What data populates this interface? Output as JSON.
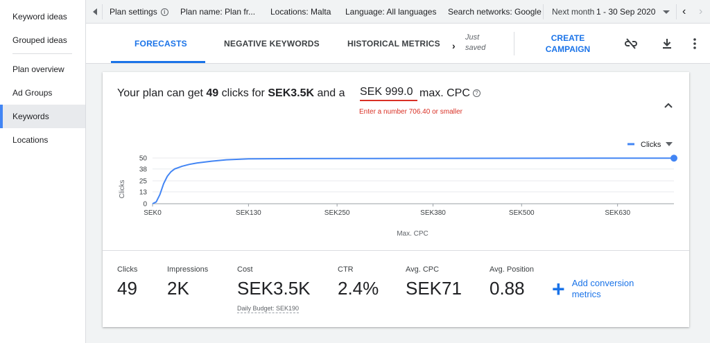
{
  "sidebar": {
    "items": [
      {
        "label": "Keyword ideas"
      },
      {
        "label": "Grouped ideas"
      },
      {
        "label": "Plan overview"
      },
      {
        "label": "Ad Groups"
      },
      {
        "label": "Keywords"
      },
      {
        "label": "Locations"
      }
    ],
    "active_index": 4
  },
  "topbar": {
    "plan_settings": "Plan settings",
    "plan_name": "Plan name: Plan fr...",
    "locations": "Locations: Malta",
    "language": "Language: All languages",
    "networks": "Search networks: Google",
    "period_label": "Next month",
    "period_value": "1 - 30 Sep 2020"
  },
  "tabs": {
    "forecasts": "FORECASTS",
    "negative": "NEGATIVE KEYWORDS",
    "historical": "HISTORICAL METRICS",
    "saved_line1": "Just",
    "saved_line2": "saved",
    "create_line1": "CREATE",
    "create_line2": "CAMPAIGN"
  },
  "summary": {
    "prefix": "Your plan can get",
    "clicks": "49",
    "mid": "clicks for",
    "cost": "SEK3.5K",
    "and": "and a",
    "cpc_value": "SEK 999.0",
    "suffix": "max. CPC",
    "error": "Enter a number 706.40 or smaller"
  },
  "chart_data": {
    "type": "line",
    "xlabel": "Max. CPC",
    "ylabel": "Clicks",
    "legend": "Clicks",
    "x_ticks": [
      "SEK0",
      "SEK130",
      "SEK250",
      "SEK380",
      "SEK500",
      "SEK630"
    ],
    "x_tick_values": [
      0,
      130,
      250,
      380,
      500,
      630
    ],
    "y_ticks": [
      "0",
      "13",
      "25",
      "38",
      "50"
    ],
    "y_tick_values": [
      0,
      13,
      25,
      38,
      50
    ],
    "xlim": [
      0,
      706.4
    ],
    "ylim": [
      0,
      50
    ],
    "series": [
      {
        "name": "Clicks",
        "color": "#4285f4",
        "x": [
          0,
          5,
          10,
          15,
          20,
          25,
          30,
          40,
          50,
          60,
          80,
          100,
          130,
          200,
          300,
          400,
          500,
          600,
          706.4
        ],
        "y": [
          0,
          2,
          10,
          22,
          30,
          35,
          38,
          41,
          43,
          44.5,
          46.5,
          48,
          49,
          49.3,
          49.5,
          49.6,
          49.7,
          49.8,
          49.8
        ]
      }
    ]
  },
  "metrics": [
    {
      "label": "Clicks",
      "value": "49"
    },
    {
      "label": "Impressions",
      "value": "2K"
    },
    {
      "label": "Cost",
      "value": "SEK3.5K"
    },
    {
      "label": "CTR",
      "value": "2.4%"
    },
    {
      "label": "Avg. CPC",
      "value": "SEK71"
    },
    {
      "label": "Avg. Position",
      "value": "0.88"
    }
  ],
  "daily_budget": "Daily Budget: SEK190",
  "add_conversion": {
    "line1": "Add conversion",
    "line2": "metrics"
  },
  "colors": {
    "accent": "#1a73e8",
    "series": "#4285f4",
    "error": "#d93025"
  }
}
